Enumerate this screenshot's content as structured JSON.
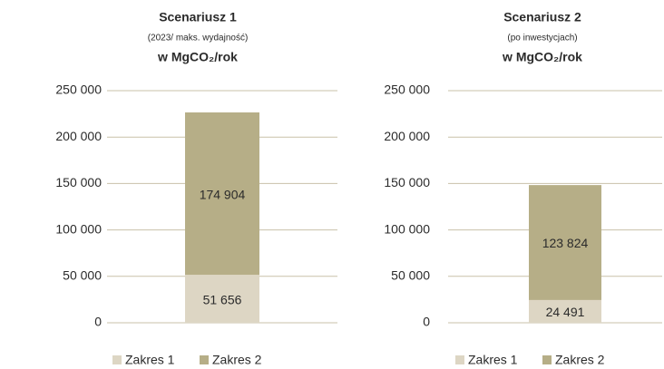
{
  "chart_data": [
    {
      "type": "stacked_bar",
      "title": "Scenariusz 1",
      "subtitle": "(2023/ maks. wydajność)",
      "unit": "w MgCO₂/rok",
      "categories": [
        null
      ],
      "series": [
        {
          "name": "Zakres 1",
          "color": "#ddd6c4",
          "values": [
            51656
          ],
          "value_labels": [
            "51 656"
          ]
        },
        {
          "name": "Zakres 2",
          "color": "#b6ae87",
          "values": [
            174904
          ],
          "value_labels": [
            "174 904"
          ]
        }
      ],
      "ylim": [
        0,
        250000
      ],
      "yticks": [
        0,
        {
          "value": 50000,
          "label": "50 000"
        },
        {
          "value": 100000,
          "label": "100 000"
        },
        {
          "value": 150000,
          "label": "150 000"
        },
        {
          "value": 200000,
          "label": "200 000"
        },
        {
          "value": 250000,
          "label": "250 000"
        }
      ],
      "grid": true,
      "legend": "bottom"
    },
    {
      "type": "stacked_bar",
      "title": "Scenariusz 2",
      "subtitle": "(po inwestycjach)",
      "unit": "w MgCO₂/rok",
      "categories": [
        null
      ],
      "series": [
        {
          "name": "Zakres 1",
          "color": "#ddd6c4",
          "values": [
            24491
          ],
          "value_labels": [
            "24 491"
          ]
        },
        {
          "name": "Zakres 2",
          "color": "#b6ae87",
          "values": [
            123824
          ],
          "value_labels": [
            "123 824"
          ]
        }
      ],
      "ylim": [
        0,
        250000
      ],
      "yticks": [
        0,
        {
          "value": 50000,
          "label": "50 000"
        },
        {
          "value": 100000,
          "label": "100 000"
        },
        {
          "value": 150000,
          "label": "150 000"
        },
        {
          "value": 200000,
          "label": "200 000"
        },
        {
          "value": 250000,
          "label": "250 000"
        }
      ],
      "grid": true,
      "legend": "bottom"
    }
  ]
}
